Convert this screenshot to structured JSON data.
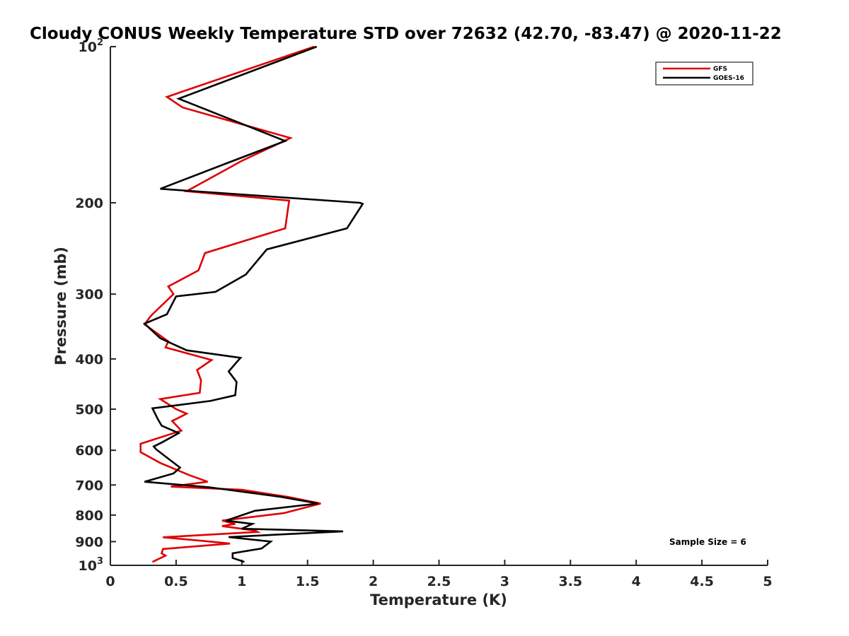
{
  "chart_data": {
    "type": "line",
    "title": "Cloudy CONUS Weekly Temperature STD over 72632 (42.70, -83.47) @ 2020-11-22",
    "xlabel": "Temperature (K)",
    "ylabel": "Pressure (mb)",
    "xlim": [
      0,
      5
    ],
    "ylim": [
      100,
      1000
    ],
    "y_scale": "log",
    "y_reversed": true,
    "x_ticks": [
      "0",
      "0.5",
      "1",
      "1.5",
      "2",
      "2.5",
      "3",
      "3.5",
      "4",
      "4.5",
      "5"
    ],
    "y_tick_values": [
      100,
      200,
      300,
      400,
      500,
      600,
      700,
      800,
      900,
      1000
    ],
    "y_tick_labels": [
      {
        "base": "10",
        "exp": "2"
      },
      {
        "base": "200",
        "exp": ""
      },
      {
        "base": "300",
        "exp": ""
      },
      {
        "base": "400",
        "exp": ""
      },
      {
        "base": "500",
        "exp": ""
      },
      {
        "base": "600",
        "exp": ""
      },
      {
        "base": "700",
        "exp": ""
      },
      {
        "base": "800",
        "exp": ""
      },
      {
        "base": "900",
        "exp": ""
      },
      {
        "base": "10",
        "exp": "3"
      }
    ],
    "grid": false,
    "legend_position": "top-right",
    "annotation": "Sample Size = 6",
    "series": [
      {
        "name": "GFS",
        "color": "#e00000",
        "points": [
          [
            1.55,
            100
          ],
          [
            0.43,
            125
          ],
          [
            0.55,
            131
          ],
          [
            1.37,
            150
          ],
          [
            1.0,
            166
          ],
          [
            0.58,
            190
          ],
          [
            1.36,
            198
          ],
          [
            1.33,
            224
          ],
          [
            0.72,
            250
          ],
          [
            0.67,
            270
          ],
          [
            0.44,
            290
          ],
          [
            0.48,
            300
          ],
          [
            0.31,
            330
          ],
          [
            0.26,
            343
          ],
          [
            0.44,
            370
          ],
          [
            0.42,
            380
          ],
          [
            0.77,
            402
          ],
          [
            0.66,
            420
          ],
          [
            0.69,
            440
          ],
          [
            0.68,
            465
          ],
          [
            0.38,
            478
          ],
          [
            0.5,
            500
          ],
          [
            0.58,
            510
          ],
          [
            0.47,
            527
          ],
          [
            0.54,
            550
          ],
          [
            0.23,
            583
          ],
          [
            0.23,
            605
          ],
          [
            0.38,
            635
          ],
          [
            0.6,
            670
          ],
          [
            0.74,
            690
          ],
          [
            0.46,
            705
          ],
          [
            1.0,
            715
          ],
          [
            1.35,
            738
          ],
          [
            1.6,
            760
          ],
          [
            1.32,
            793
          ],
          [
            0.85,
            820
          ],
          [
            0.95,
            832
          ],
          [
            0.85,
            840
          ],
          [
            1.1,
            857
          ],
          [
            1.12,
            862
          ],
          [
            0.4,
            883
          ],
          [
            0.72,
            898
          ],
          [
            0.91,
            908
          ],
          [
            0.4,
            930
          ],
          [
            0.39,
            948
          ],
          [
            0.42,
            958
          ],
          [
            0.32,
            985
          ]
        ]
      },
      {
        "name": "GOES-16",
        "color": "#000000",
        "points": [
          [
            1.57,
            100
          ],
          [
            0.52,
            126
          ],
          [
            1.33,
            152
          ],
          [
            0.88,
            168
          ],
          [
            0.38,
            188
          ],
          [
            1.9,
            200
          ],
          [
            1.92,
            201
          ],
          [
            1.8,
            224
          ],
          [
            1.19,
            246
          ],
          [
            1.03,
            275
          ],
          [
            0.8,
            297
          ],
          [
            0.5,
            303
          ],
          [
            0.43,
            328
          ],
          [
            0.26,
            342
          ],
          [
            0.38,
            365
          ],
          [
            0.58,
            385
          ],
          [
            0.99,
            398
          ],
          [
            0.9,
            423
          ],
          [
            0.96,
            443
          ],
          [
            0.95,
            470
          ],
          [
            0.76,
            482
          ],
          [
            0.32,
            498
          ],
          [
            0.36,
            522
          ],
          [
            0.39,
            538
          ],
          [
            0.52,
            556
          ],
          [
            0.4,
            578
          ],
          [
            0.33,
            590
          ],
          [
            0.35,
            598
          ],
          [
            0.53,
            648
          ],
          [
            0.48,
            665
          ],
          [
            0.26,
            690
          ],
          [
            0.75,
            707
          ],
          [
            1.3,
            738
          ],
          [
            1.58,
            760
          ],
          [
            1.1,
            785
          ],
          [
            0.88,
            820
          ],
          [
            1.08,
            832
          ],
          [
            1.0,
            850
          ],
          [
            1.77,
            860
          ],
          [
            0.9,
            882
          ],
          [
            1.22,
            900
          ],
          [
            1.15,
            928
          ],
          [
            0.93,
            948
          ],
          [
            0.93,
            968
          ],
          [
            1.02,
            985
          ]
        ]
      }
    ]
  }
}
